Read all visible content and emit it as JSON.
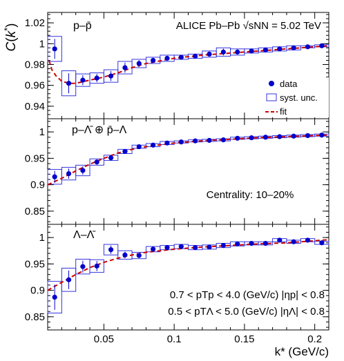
{
  "figure": {
    "ylabel": "C(k*)",
    "xlabel": "k* (GeV/c)",
    "experiment_label": "ALICE Pb–Pb √sNN = 5.02 TeV",
    "centrality_label": "Centrality: 10–20%",
    "cut_lines": [
      "0.7 < pTp < 4.0 (GeV/c)   |ηp| < 0.8",
      "0.5 < pTΛ < 5.0 (GeV/c)   |ηΛ| < 0.8"
    ],
    "legend": [
      "data",
      "syst. unc.",
      "fit"
    ],
    "colors": {
      "data": "#0000cc",
      "syst": "#3333dd",
      "fit": "#cc0000"
    }
  },
  "chart_data": [
    {
      "type": "scatter",
      "panel": "p-pbar",
      "pair_label": "p–p̄",
      "xlim": [
        0.01,
        0.21
      ],
      "ylim": [
        0.928,
        1.03
      ],
      "xticks": [
        0.05,
        0.1,
        0.15,
        0.2
      ],
      "yticks": [
        0.94,
        0.96,
        0.98,
        1,
        1.02
      ],
      "series": [
        {
          "name": "data",
          "x": [
            0.015,
            0.025,
            0.035,
            0.045,
            0.055,
            0.065,
            0.075,
            0.085,
            0.095,
            0.105,
            0.115,
            0.125,
            0.135,
            0.145,
            0.155,
            0.165,
            0.175,
            0.185,
            0.195,
            0.205
          ],
          "y": [
            0.995,
            0.962,
            0.965,
            0.967,
            0.969,
            0.977,
            0.981,
            0.984,
            0.986,
            0.987,
            0.988,
            0.99,
            0.992,
            0.992,
            0.993,
            0.994,
            0.995,
            0.996,
            0.997,
            0.998
          ],
          "syst": [
            0.012,
            0.012,
            0.006,
            0.005,
            0.006,
            0.006,
            0.004,
            0.003,
            0.003,
            0.002,
            0.002,
            0.003,
            0.004,
            0.003,
            0.002,
            0.002,
            0.002,
            0.002,
            0.001,
            0.001
          ]
        },
        {
          "name": "fit",
          "x": [
            0.011,
            0.013,
            0.016,
            0.02,
            0.025,
            0.03,
            0.04,
            0.05,
            0.06,
            0.07,
            0.08,
            0.1,
            0.12,
            0.14,
            0.16,
            0.18,
            0.21
          ],
          "y": [
            0.984,
            0.975,
            0.969,
            0.964,
            0.962,
            0.962,
            0.965,
            0.968,
            0.972,
            0.977,
            0.981,
            0.986,
            0.989,
            0.991,
            0.993,
            0.995,
            0.998
          ]
        }
      ]
    },
    {
      "type": "scatter",
      "panel": "p-Lambdabar",
      "pair_label": "p–Λ̄ ⊕ p̄–Λ",
      "xlim": [
        0.01,
        0.21
      ],
      "ylim": [
        0.825,
        1.025
      ],
      "xticks": [
        0.05,
        0.1,
        0.15,
        0.2
      ],
      "yticks": [
        0.85,
        0.9,
        0.95,
        1
      ],
      "series": [
        {
          "name": "data",
          "x": [
            0.015,
            0.025,
            0.035,
            0.045,
            0.055,
            0.065,
            0.075,
            0.085,
            0.095,
            0.105,
            0.115,
            0.125,
            0.135,
            0.145,
            0.155,
            0.165,
            0.175,
            0.185,
            0.195,
            0.205
          ],
          "y": [
            0.915,
            0.921,
            0.927,
            0.943,
            0.951,
            0.963,
            0.972,
            0.975,
            0.979,
            0.981,
            0.983,
            0.984,
            0.985,
            0.988,
            0.989,
            0.99,
            0.991,
            0.992,
            0.993,
            0.994
          ],
          "syst": [
            0.014,
            0.012,
            0.01,
            0.006,
            0.005,
            0.004,
            0.003,
            0.003,
            0.003,
            0.002,
            0.002,
            0.002,
            0.002,
            0.002,
            0.002,
            0.002,
            0.002,
            0.002,
            0.002,
            0.002
          ]
        },
        {
          "name": "fit",
          "x": [
            0.01,
            0.02,
            0.03,
            0.04,
            0.05,
            0.06,
            0.07,
            0.08,
            0.1,
            0.12,
            0.14,
            0.16,
            0.18,
            0.21
          ],
          "y": [
            0.9,
            0.912,
            0.926,
            0.939,
            0.95,
            0.96,
            0.967,
            0.972,
            0.979,
            0.983,
            0.986,
            0.989,
            0.991,
            0.994
          ]
        }
      ]
    },
    {
      "type": "scatter",
      "panel": "Lambda-Lambdabar",
      "pair_label": "Λ–Λ̄",
      "xlim": [
        0.01,
        0.21
      ],
      "ylim": [
        0.825,
        1.025
      ],
      "xticks": [
        0.05,
        0.1,
        0.15,
        0.2
      ],
      "yticks": [
        0.85,
        0.9,
        0.95,
        1
      ],
      "series": [
        {
          "name": "data",
          "x": [
            0.015,
            0.025,
            0.035,
            0.045,
            0.055,
            0.065,
            0.075,
            0.085,
            0.095,
            0.105,
            0.115,
            0.125,
            0.135,
            0.145,
            0.155,
            0.165,
            0.175,
            0.185,
            0.195,
            0.205
          ],
          "y": [
            0.887,
            0.92,
            0.945,
            0.946,
            0.977,
            0.967,
            0.966,
            0.978,
            0.981,
            0.983,
            0.981,
            0.982,
            0.985,
            0.988,
            0.989,
            0.989,
            0.995,
            0.992,
            0.995,
            0.99
          ],
          "syst": [
            0.03,
            0.022,
            0.014,
            0.012,
            0.01,
            0.008,
            0.006,
            0.005,
            0.004,
            0.004,
            0.004,
            0.004,
            0.004,
            0.004,
            0.003,
            0.003,
            0.003,
            0.003,
            0.003,
            0.003
          ]
        },
        {
          "name": "fit",
          "x": [
            0.01,
            0.02,
            0.03,
            0.04,
            0.05,
            0.06,
            0.07,
            0.08,
            0.1,
            0.12,
            0.14,
            0.16,
            0.18,
            0.21
          ],
          "y": [
            0.9,
            0.915,
            0.93,
            0.943,
            0.953,
            0.961,
            0.967,
            0.972,
            0.978,
            0.982,
            0.985,
            0.988,
            0.99,
            0.996
          ]
        }
      ]
    }
  ]
}
